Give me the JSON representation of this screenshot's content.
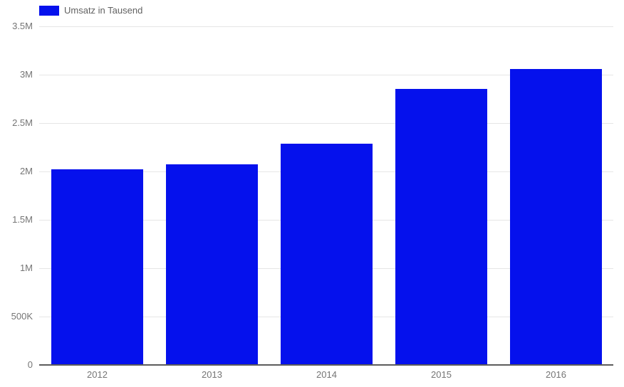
{
  "legend": {
    "label": "Umsatz in Tausend"
  },
  "colors": {
    "bar": "#0511ed",
    "gridline": "#e6e6e6",
    "baseline": "#5c5c5c",
    "axis_text": "#757575",
    "legend_text": "#616161",
    "background": "#ffffff"
  },
  "chart_data": {
    "type": "bar",
    "title": "Umsatz in Tausend",
    "categories": [
      "2012",
      "2013",
      "2014",
      "2015",
      "2016"
    ],
    "values": [
      2020000,
      2070000,
      2290000,
      2850000,
      3060000
    ],
    "xlabel": "",
    "ylabel": "",
    "ylim": [
      0,
      3500000
    ],
    "yticks": [
      {
        "value": 0,
        "label": "0"
      },
      {
        "value": 500000,
        "label": "500K"
      },
      {
        "value": 1000000,
        "label": "1M"
      },
      {
        "value": 1500000,
        "label": "1.5M"
      },
      {
        "value": 2000000,
        "label": "2M"
      },
      {
        "value": 2500000,
        "label": "2.5M"
      },
      {
        "value": 3000000,
        "label": "3M"
      },
      {
        "value": 3500000,
        "label": "3.5M"
      }
    ],
    "grid": true,
    "legend_position": "top-left",
    "bar_width_ratio": 0.8
  }
}
